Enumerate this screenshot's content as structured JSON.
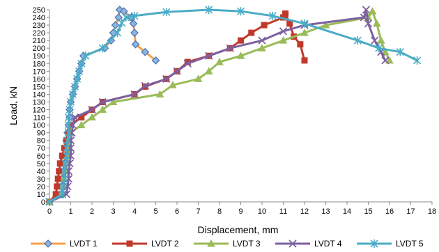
{
  "chart_data": {
    "type": "line",
    "title": "",
    "xlabel": "Displacement,  mm",
    "ylabel": "Load, kN",
    "xlim": [
      0,
      18
    ],
    "ylim": [
      0,
      250
    ],
    "x_ticks": [
      0,
      1,
      2,
      3,
      4,
      5,
      6,
      7,
      8,
      9,
      10,
      11,
      12,
      13,
      14,
      15,
      16,
      17,
      18
    ],
    "y_ticks": [
      0,
      10,
      20,
      30,
      40,
      50,
      60,
      70,
      80,
      90,
      100,
      110,
      120,
      130,
      140,
      150,
      160,
      170,
      180,
      190,
      200,
      210,
      220,
      230,
      240,
      250
    ],
    "grid": false,
    "legend_position": "bottom",
    "series": [
      {
        "name": "LVDT 1",
        "color": "#f5a14a",
        "marker_fill": "#8fb4df",
        "marker_stroke": "#4f78b6",
        "marker": "diamond",
        "points": [
          [
            0,
            0
          ],
          [
            0.55,
            10
          ],
          [
            0.6,
            20
          ],
          [
            0.6,
            30
          ],
          [
            0.65,
            40
          ],
          [
            0.7,
            50
          ],
          [
            0.75,
            60
          ],
          [
            0.8,
            70
          ],
          [
            0.8,
            80
          ],
          [
            0.85,
            90
          ],
          [
            0.9,
            100
          ],
          [
            0.95,
            110
          ],
          [
            0.95,
            120
          ],
          [
            1.0,
            130
          ],
          [
            1.1,
            140
          ],
          [
            1.2,
            150
          ],
          [
            1.3,
            160
          ],
          [
            1.4,
            170
          ],
          [
            1.5,
            180
          ],
          [
            1.6,
            190
          ],
          [
            2.6,
            200
          ],
          [
            2.9,
            210
          ],
          [
            3.0,
            220
          ],
          [
            3.1,
            230
          ],
          [
            3.25,
            240
          ],
          [
            3.3,
            250
          ],
          [
            3.5,
            248
          ],
          [
            3.85,
            240
          ],
          [
            3.95,
            232
          ],
          [
            4.0,
            220
          ],
          [
            4.05,
            205
          ],
          [
            4.5,
            195
          ],
          [
            5.0,
            184
          ]
        ]
      },
      {
        "name": "LVDT 2",
        "color": "#c0392b",
        "marker_fill": "#c0392b",
        "marker_stroke": "#c0392b",
        "marker": "square",
        "points": [
          [
            0,
            0
          ],
          [
            0.3,
            10
          ],
          [
            0.35,
            20
          ],
          [
            0.4,
            30
          ],
          [
            0.45,
            40
          ],
          [
            0.5,
            50
          ],
          [
            0.6,
            60
          ],
          [
            0.7,
            70
          ],
          [
            0.8,
            80
          ],
          [
            0.9,
            90
          ],
          [
            1.0,
            100
          ],
          [
            1.5,
            110
          ],
          [
            2.0,
            120
          ],
          [
            2.5,
            130
          ],
          [
            4.0,
            140
          ],
          [
            4.5,
            150
          ],
          [
            5.5,
            160
          ],
          [
            6.0,
            170
          ],
          [
            6.5,
            182
          ],
          [
            7.5,
            190
          ],
          [
            8.5,
            200
          ],
          [
            9.0,
            210
          ],
          [
            9.5,
            220
          ],
          [
            10.1,
            230
          ],
          [
            11.0,
            240
          ],
          [
            11.1,
            245
          ],
          [
            11.3,
            232
          ],
          [
            11.5,
            215
          ],
          [
            11.8,
            205
          ],
          [
            12.0,
            184
          ]
        ]
      },
      {
        "name": "LVDT 3",
        "color": "#9bbb59",
        "marker_fill": "#9bbb59",
        "marker_stroke": "#9bbb59",
        "marker": "triangle",
        "points": [
          [
            0,
            0
          ],
          [
            0.6,
            10
          ],
          [
            0.65,
            20
          ],
          [
            0.7,
            30
          ],
          [
            0.75,
            40
          ],
          [
            0.8,
            50
          ],
          [
            0.85,
            60
          ],
          [
            0.9,
            70
          ],
          [
            0.95,
            80
          ],
          [
            1.0,
            90
          ],
          [
            1.5,
            100
          ],
          [
            2.0,
            110
          ],
          [
            2.5,
            120
          ],
          [
            3.0,
            130
          ],
          [
            5.2,
            140
          ],
          [
            5.8,
            152
          ],
          [
            7.0,
            160
          ],
          [
            7.5,
            170
          ],
          [
            8.0,
            182
          ],
          [
            9.0,
            190
          ],
          [
            10.0,
            200
          ],
          [
            11.0,
            210
          ],
          [
            12.0,
            220
          ],
          [
            13.0,
            230
          ],
          [
            15.0,
            240
          ],
          [
            15.2,
            248
          ],
          [
            15.4,
            232
          ],
          [
            15.6,
            210
          ],
          [
            15.8,
            195
          ],
          [
            16.0,
            184
          ]
        ]
      },
      {
        "name": "LVDT 4",
        "color": "#7d60a0",
        "marker_fill": "#7d60a0",
        "marker_stroke": "#7d60a0",
        "marker": "x",
        "points": [
          [
            0,
            0
          ],
          [
            0.8,
            10
          ],
          [
            0.85,
            20
          ],
          [
            0.9,
            30
          ],
          [
            0.9,
            40
          ],
          [
            0.95,
            50
          ],
          [
            1.0,
            60
          ],
          [
            1.0,
            70
          ],
          [
            1.0,
            80
          ],
          [
            1.05,
            90
          ],
          [
            1.1,
            100
          ],
          [
            1.2,
            110
          ],
          [
            2.0,
            120
          ],
          [
            2.5,
            130
          ],
          [
            4.0,
            140
          ],
          [
            4.5,
            151
          ],
          [
            5.5,
            160
          ],
          [
            6.0,
            170
          ],
          [
            6.5,
            180
          ],
          [
            7.5,
            190
          ],
          [
            8.5,
            200
          ],
          [
            10.0,
            210
          ],
          [
            11.0,
            222
          ],
          [
            12.0,
            230
          ],
          [
            14.8,
            240
          ],
          [
            14.9,
            250
          ],
          [
            15.0,
            232
          ],
          [
            15.3,
            210
          ],
          [
            15.6,
            195
          ],
          [
            15.8,
            184
          ]
        ]
      },
      {
        "name": "LVDT 5",
        "color": "#4bacc6",
        "marker_fill": "#4bacc6",
        "marker_stroke": "#4bacc6",
        "marker": "asterisk",
        "points": [
          [
            0,
            0
          ],
          [
            0.6,
            10
          ],
          [
            0.65,
            20
          ],
          [
            0.7,
            30
          ],
          [
            0.7,
            40
          ],
          [
            0.75,
            50
          ],
          [
            0.8,
            60
          ],
          [
            0.8,
            70
          ],
          [
            0.85,
            80
          ],
          [
            0.9,
            90
          ],
          [
            0.9,
            100
          ],
          [
            0.9,
            110
          ],
          [
            0.95,
            120
          ],
          [
            1.0,
            130
          ],
          [
            1.1,
            140
          ],
          [
            1.2,
            150
          ],
          [
            1.3,
            160
          ],
          [
            1.4,
            170
          ],
          [
            1.5,
            180
          ],
          [
            1.7,
            190
          ],
          [
            2.5,
            200
          ],
          [
            3.2,
            220
          ],
          [
            3.4,
            233
          ],
          [
            3.6,
            240
          ],
          [
            4.0,
            242
          ],
          [
            5.5,
            247
          ],
          [
            7.5,
            250
          ],
          [
            9.0,
            248
          ],
          [
            10.5,
            242
          ],
          [
            12.0,
            232
          ],
          [
            14.5,
            210
          ],
          [
            15.5,
            200
          ],
          [
            16.5,
            195
          ],
          [
            17.3,
            184
          ]
        ]
      }
    ]
  }
}
